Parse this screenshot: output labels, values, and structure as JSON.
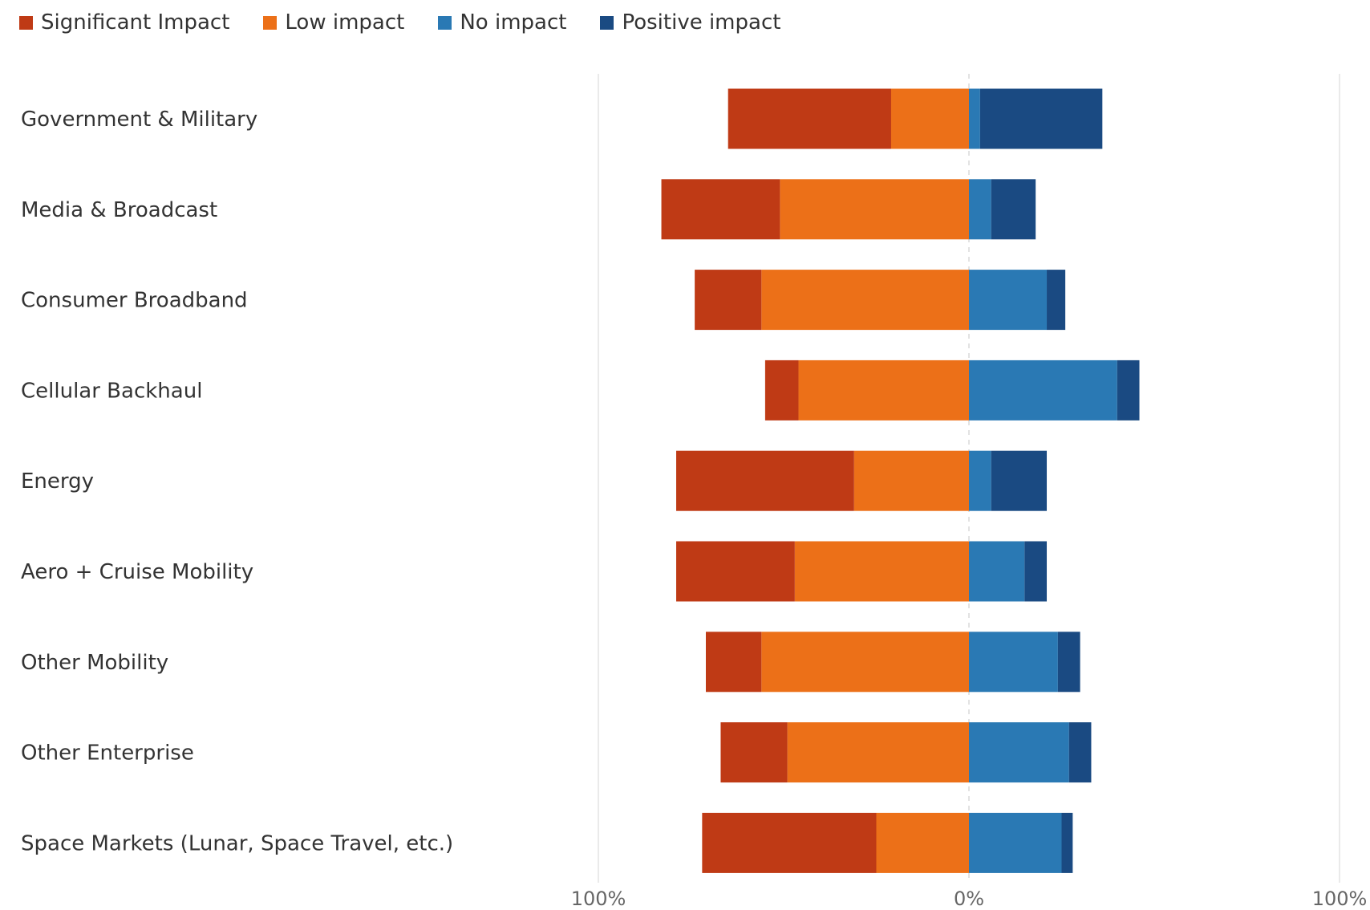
{
  "chart_data": {
    "type": "bar",
    "orientation": "horizontal",
    "stacked": "diverging",
    "categories": [
      "Government & Military",
      "Media & Broadcast",
      "Consumer Broadband",
      "Cellular Backhaul",
      "Energy",
      "Aero + Cruise Mobility",
      "Other Mobility",
      "Other Enterprise",
      "Space Markets (Lunar, Space Travel, etc.)"
    ],
    "series": [
      {
        "name": "Significant Impact",
        "side": "negative",
        "color": "#bf3a15",
        "values": [
          44,
          32,
          18,
          9,
          48,
          32,
          15,
          18,
          47
        ]
      },
      {
        "name": "Low impact",
        "side": "negative",
        "color": "#ec7018",
        "values": [
          21,
          51,
          56,
          46,
          31,
          47,
          56,
          49,
          25
        ]
      },
      {
        "name": "No impact",
        "side": "positive",
        "color": "#2a79b4",
        "values": [
          3,
          6,
          21,
          40,
          6,
          15,
          24,
          27,
          25
        ]
      },
      {
        "name": "Positive impact",
        "side": "positive",
        "color": "#1a4a82",
        "values": [
          33,
          12,
          5,
          6,
          15,
          6,
          6,
          6,
          3
        ]
      }
    ],
    "xlim": [
      -100,
      100
    ],
    "x_ticks": [
      "100%",
      "0%",
      "100%"
    ],
    "grid": true,
    "legend_position": "top-left"
  },
  "colors": {
    "grid": "#e3e3e3",
    "zero_line": "#d9d9d9"
  }
}
